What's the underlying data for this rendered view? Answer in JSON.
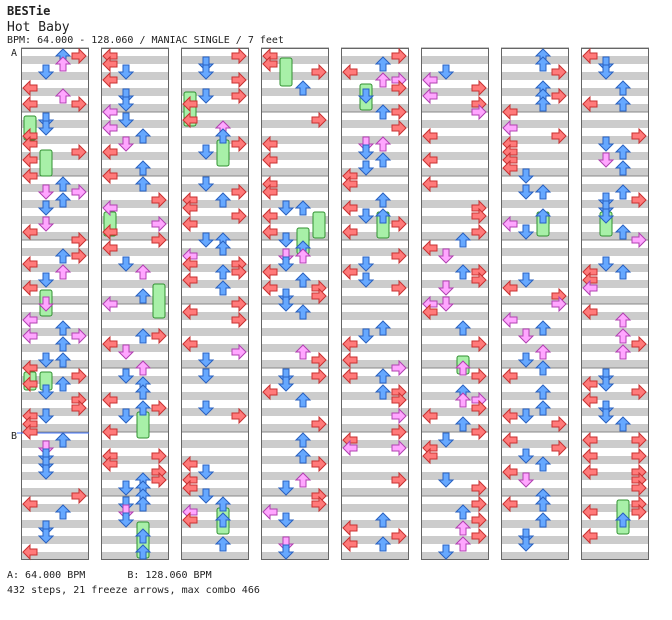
{
  "header": {
    "artist": "BESTie",
    "title": "Hot Baby",
    "info": "BPM: 64.000 - 128.060 / MANIAC SINGLE / 7 feet"
  },
  "markers": {
    "a": "A",
    "b": "B"
  },
  "footer": {
    "bpm_a": "A: 64.000 BPM",
    "bpm_b": "B: 128.060 BPM",
    "summary": "432 steps, 21 freeze arrows, max combo 466"
  },
  "colors": {
    "left_right": "#ff7a7a",
    "down_up": "#66a8ff",
    "half_beat": "#ffa6ff",
    "freeze": "#a8f0a8",
    "stripe": "#cccccc",
    "bpm_line": "#4477ff"
  },
  "chart_data": {
    "type": "step-chart",
    "columns": 8,
    "measures_per_column": 8,
    "lanes": [
      "left",
      "down",
      "up",
      "right"
    ],
    "steps_total": 432,
    "freeze_arrows": 21,
    "max_combo": 466
  }
}
